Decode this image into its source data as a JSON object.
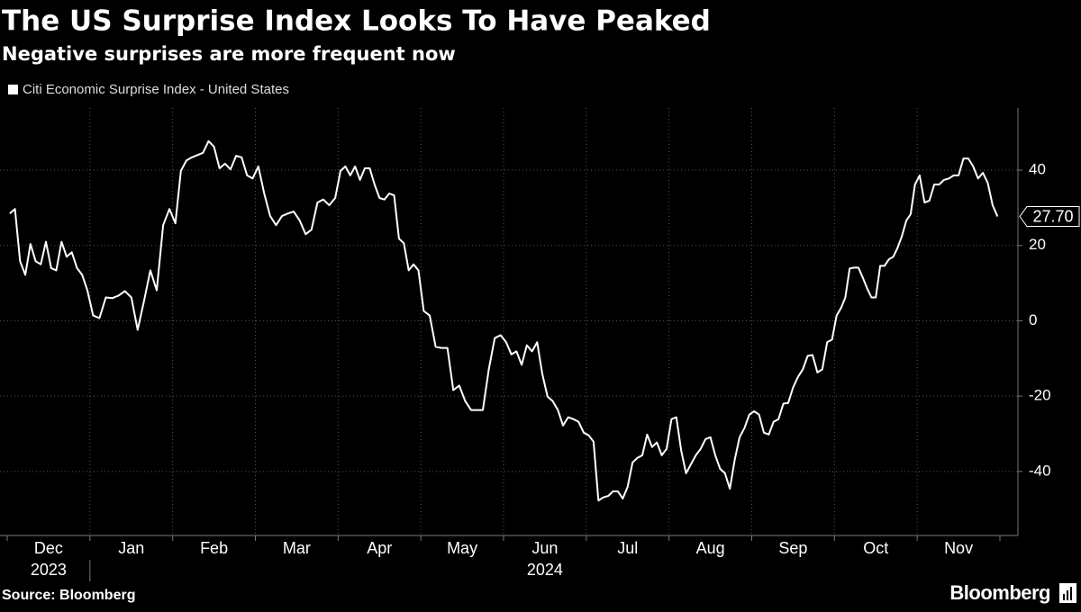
{
  "chart_data": {
    "type": "line",
    "title": "The US Surprise Index Looks To Have Peaked",
    "subtitle": "Negative surprises are more frequent now",
    "source": "Source: Bloomberg",
    "brand": "Bloomberg",
    "x": [
      "Dec",
      "Dec",
      "Dec",
      "Dec",
      "Dec",
      "Dec",
      "Dec",
      "Dec",
      "Dec",
      "Dec",
      "Dec",
      "Dec",
      "Dec",
      "Dec",
      "Dec",
      "Dec",
      "Jan",
      "Jan",
      "Jan",
      "Jan",
      "Jan",
      "Jan",
      "Jan",
      "Jan",
      "Jan",
      "Jan",
      "Jan",
      "Jan",
      "Jan",
      "Feb",
      "Feb",
      "Feb",
      "Feb",
      "Feb",
      "Feb",
      "Feb",
      "Feb",
      "Feb",
      "Feb",
      "Feb",
      "Feb",
      "Feb",
      "Feb",
      "Feb",
      "Mar",
      "Mar",
      "Mar",
      "Mar",
      "Mar",
      "Mar",
      "Mar",
      "Mar",
      "Mar",
      "Mar",
      "Mar",
      "Mar",
      "Mar",
      "Mar",
      "Apr",
      "Apr",
      "Apr",
      "Apr",
      "Apr",
      "Apr",
      "Apr",
      "Apr",
      "Apr",
      "Apr",
      "Apr",
      "Apr",
      "Apr",
      "Apr",
      "Apr",
      "Apr",
      "Apr",
      "May",
      "May",
      "May",
      "May",
      "May",
      "May",
      "May",
      "May",
      "May",
      "May",
      "May",
      "May",
      "May",
      "May",
      "Jun",
      "Jun",
      "Jun",
      "Jun",
      "Jun",
      "Jun",
      "Jun",
      "Jun",
      "Jun",
      "Jun",
      "Jun",
      "Jun",
      "Jun",
      "Jun",
      "Jun",
      "Jun",
      "Jul",
      "Jul",
      "Jul",
      "Jul",
      "Jul",
      "Jul",
      "Jul",
      "Jul",
      "Jul",
      "Jul",
      "Jul",
      "Jul",
      "Jul",
      "Jul",
      "Jul",
      "Jul",
      "Jul",
      "Aug",
      "Aug",
      "Aug",
      "Aug",
      "Aug",
      "Aug",
      "Aug",
      "Aug",
      "Aug",
      "Aug",
      "Aug",
      "Aug",
      "Aug",
      "Aug",
      "Aug",
      "Aug",
      "Aug",
      "Sep",
      "Sep",
      "Sep",
      "Sep",
      "Sep",
      "Sep",
      "Sep",
      "Sep",
      "Sep",
      "Sep",
      "Sep",
      "Sep",
      "Sep",
      "Sep",
      "Sep",
      "Sep",
      "Sep",
      "Oct",
      "Oct",
      "Oct",
      "Oct",
      "Oct",
      "Oct",
      "Oct",
      "Oct",
      "Oct",
      "Oct",
      "Oct",
      "Oct",
      "Oct",
      "Oct",
      "Oct",
      "Oct",
      "Oct",
      "Oct",
      "Oct",
      "Nov",
      "Nov",
      "Nov",
      "Nov",
      "Nov",
      "Nov",
      "Nov",
      "Nov",
      "Nov",
      "Nov",
      "Nov",
      "Nov",
      "Nov",
      "Nov",
      "Nov",
      "Nov",
      "Nov"
    ],
    "years": [
      "2023",
      "2024"
    ],
    "series": [
      {
        "name": "Citi Economic Surprise Index - United States",
        "color": "#ffffff",
        "last_label": "27.70",
        "values": [
          28.5,
          29.7,
          15.8,
          12.2,
          20.4,
          15.8,
          15,
          21,
          14,
          13.4,
          21,
          17,
          18.2,
          14,
          12.2,
          8.1,
          1.4,
          0.7,
          6.2,
          6,
          6.7,
          7.9,
          6.2,
          -2.4,
          5.3,
          13.4,
          8.1,
          25.4,
          29.7,
          25.9,
          39.8,
          42.6,
          43.4,
          44,
          44.6,
          47.7,
          46.2,
          40.5,
          41.7,
          40.2,
          43.8,
          43.4,
          38.6,
          37.8,
          41,
          33.8,
          27.8,
          25.4,
          27.8,
          28.5,
          29,
          26.6,
          23,
          24.2,
          31.4,
          32.2,
          30.7,
          32.6,
          39.8,
          41,
          38.6,
          41,
          37.4,
          40.5,
          40.5,
          36.2,
          32.6,
          32.2,
          33.8,
          33.3,
          21.8,
          20.6,
          13.4,
          15,
          13.4,
          2.6,
          1.4,
          -6.9,
          -7.2,
          -7.2,
          -18.4,
          -17.2,
          -21.3,
          -23.7,
          -23.7,
          -23.7,
          -12.9,
          -4.6,
          -3.8,
          -5.7,
          -8.9,
          -8.1,
          -11.7,
          -6.5,
          -8.1,
          -5.7,
          -14.1,
          -20.1,
          -21.3,
          -23.7,
          -27.8,
          -25.6,
          -26.1,
          -26.8,
          -29.7,
          -30.4,
          -32.1,
          -47.7,
          -46.9,
          -46.5,
          -45.3,
          -45.3,
          -47.2,
          -44.1,
          -37.6,
          -36.4,
          -35.7,
          -30.2,
          -33.5,
          -32.3,
          -35.7,
          -34,
          -26.1,
          -25.6,
          -34.5,
          -40.5,
          -38.1,
          -35.7,
          -34,
          -31.4,
          -30.9,
          -35.7,
          -39.3,
          -40.5,
          -44.6,
          -36.9,
          -30.9,
          -28.5,
          -24.9,
          -24,
          -24.9,
          -29.7,
          -30.2,
          -26.8,
          -26.1,
          -22,
          -21.8,
          -17.7,
          -14.9,
          -12.9,
          -9.3,
          -9.1,
          -13.7,
          -12.9,
          -5.7,
          -5,
          1.4,
          3.4,
          6.2,
          13.9,
          14.1,
          14.1,
          11.5,
          8.6,
          6.2,
          6.2,
          14.6,
          14.6,
          16.3,
          17,
          19.4,
          22.5,
          26.6,
          28.3,
          36.2,
          38.6,
          31.4,
          31.9,
          36.2,
          36.2,
          37.4,
          37.8,
          38.6,
          38.6,
          43.1,
          43.1,
          41,
          37.8,
          39.3,
          36.6,
          30.7,
          27.7
        ]
      }
    ],
    "ylim": [
      -57,
      56.5
    ],
    "yticks": [
      -40,
      -20,
      0,
      20,
      40
    ],
    "grid": true
  }
}
